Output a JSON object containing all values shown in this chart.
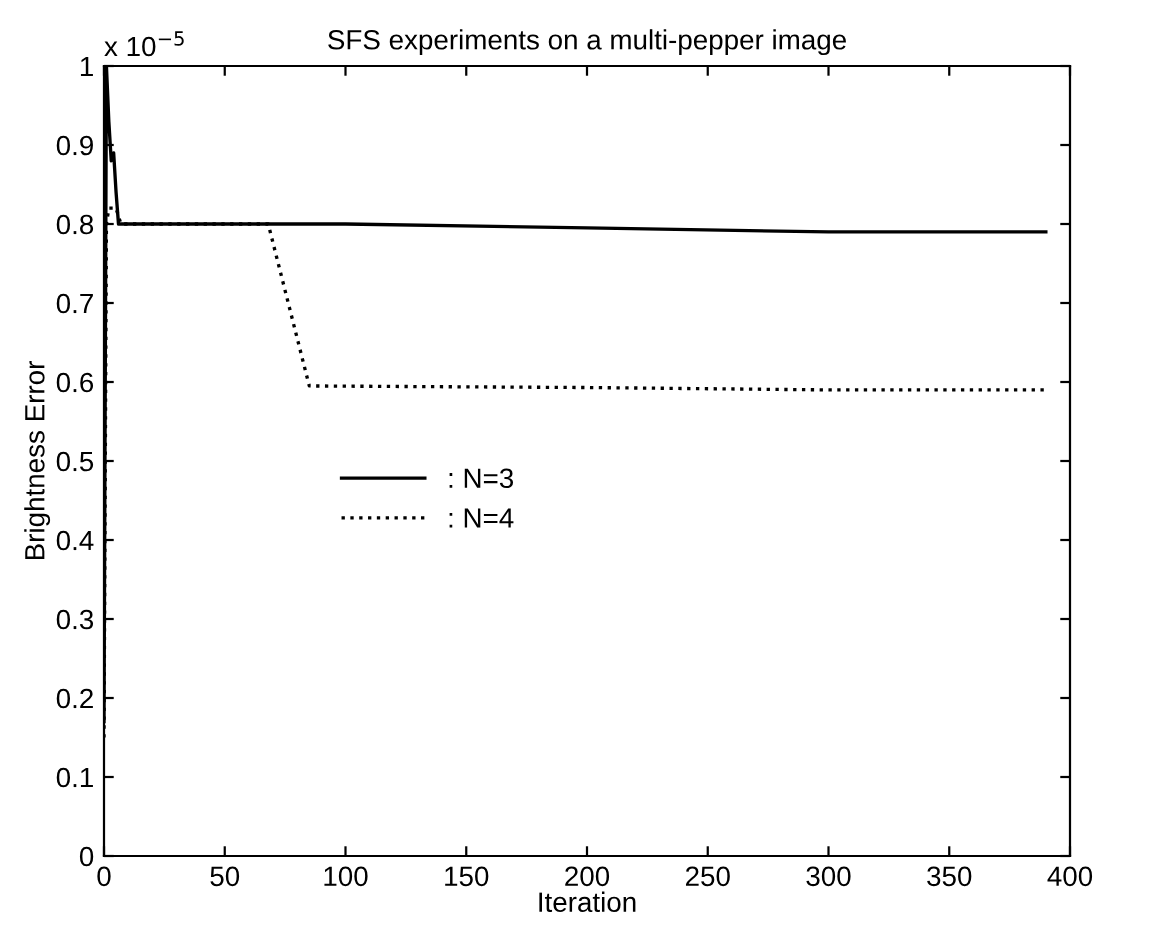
{
  "chart_data": {
    "type": "line",
    "title": "SFS experiments on a multi-pepper image",
    "xlabel": "Iteration",
    "ylabel": "Brightness Error",
    "annotations": [
      "x 10$^{−5}$"
    ],
    "xlim": [
      0,
      400
    ],
    "xticks": [
      0,
      50,
      100,
      150,
      200,
      250,
      300,
      350,
      400
    ],
    "ylim": [
      0,
      1
    ],
    "yticks": [
      0,
      0.1,
      0.2,
      0.3,
      0.4,
      0.5,
      0.6,
      0.7,
      0.8,
      0.9,
      1
    ],
    "legend": "center left",
    "grid": false,
    "series": [
      {
        "name": ": N=3",
        "color": "#000000",
        "line_style": "solid",
        "x": [
          0,
          1,
          2,
          3,
          4,
          5,
          6,
          7,
          100,
          200,
          300,
          390
        ],
        "values": [
          0.17,
          1.0,
          0.93,
          0.88,
          0.89,
          0.84,
          0.8,
          0.8,
          0.8,
          0.795,
          0.79,
          0.79
        ]
      },
      {
        "name": ": N=4",
        "color": "#000000",
        "line_style": "dotted",
        "x": [
          0,
          1,
          2,
          5,
          7,
          68,
          85,
          200,
          300,
          390
        ],
        "values": [
          0.15,
          0.8,
          0.82,
          0.82,
          0.8,
          0.8,
          0.595,
          0.593,
          0.59,
          0.59
        ]
      }
    ]
  }
}
